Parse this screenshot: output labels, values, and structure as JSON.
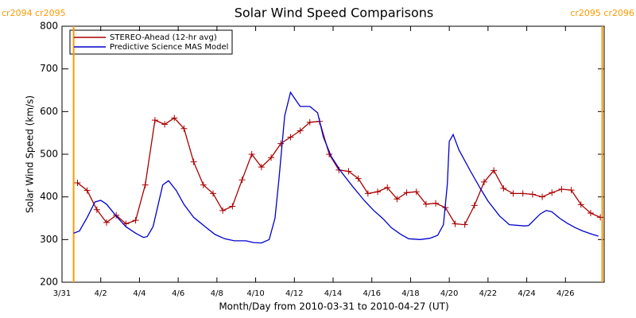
{
  "chart_data": {
    "type": "line",
    "title": "Solar Wind Speed Comparisons",
    "x_label": "Month/Day from 2010-03-31 to 2010-04-27 (UT)",
    "y_label": "Solar Wind Speed (km/s)",
    "xlim": [
      0,
      28
    ],
    "ylim": [
      200,
      800
    ],
    "yticks": [
      200,
      300,
      400,
      500,
      600,
      700,
      800
    ],
    "xticks": [
      {
        "value": 0,
        "label": "3/31"
      },
      {
        "value": 2,
        "label": "4/2"
      },
      {
        "value": 4,
        "label": "4/4"
      },
      {
        "value": 6,
        "label": "4/6"
      },
      {
        "value": 8,
        "label": "4/8"
      },
      {
        "value": 10,
        "label": "4/10"
      },
      {
        "value": 12,
        "label": "4/12"
      },
      {
        "value": 14,
        "label": "4/14"
      },
      {
        "value": 16,
        "label": "4/16"
      },
      {
        "value": 18,
        "label": "4/18"
      },
      {
        "value": 20,
        "label": "4/20"
      },
      {
        "value": 22,
        "label": "4/22"
      },
      {
        "value": 24,
        "label": "4/24"
      },
      {
        "value": 26,
        "label": "4/26"
      }
    ],
    "legend": "top-left",
    "boundaries": [
      {
        "x": 0.6,
        "label": "cr2094 cr2095",
        "color": "#ff9900"
      },
      {
        "x": 27.9,
        "label": "cr2095 cr2096",
        "color": "#ff9900"
      }
    ],
    "series": [
      {
        "name": "STEREO-Ahead (12-hr avg)",
        "color": "#aa0000",
        "marker": "+",
        "x": [
          0.8,
          1.3,
          1.8,
          2.3,
          2.8,
          3.3,
          3.8,
          4.3,
          4.8,
          5.3,
          5.8,
          6.3,
          6.8,
          7.3,
          7.8,
          8.3,
          8.8,
          9.3,
          9.8,
          10.3,
          10.8,
          11.3,
          11.8,
          12.3,
          12.8,
          13.3,
          13.8,
          14.3,
          14.8,
          15.3,
          15.8,
          16.3,
          16.8,
          17.3,
          17.8,
          18.3,
          18.8,
          19.3,
          19.8,
          20.3,
          20.8,
          21.3,
          21.8,
          22.3,
          22.8,
          23.3,
          23.8,
          24.3,
          24.8,
          25.3,
          25.8,
          26.3,
          26.8,
          27.3,
          27.8
        ],
        "values": [
          433,
          415,
          370,
          340,
          357,
          337,
          345,
          428,
          580,
          570,
          585,
          560,
          482,
          428,
          408,
          368,
          378,
          440,
          500,
          470,
          492,
          525,
          540,
          555,
          575,
          577,
          500,
          463,
          460,
          443,
          408,
          412,
          422,
          395,
          410,
          412,
          383,
          385,
          375,
          337,
          335,
          380,
          435,
          462,
          420,
          408,
          408,
          406,
          400,
          410,
          418,
          416,
          382,
          362,
          352
        ]
      },
      {
        "name": "Predictive Science MAS Model",
        "color": "#0000cc",
        "x": [
          0.6,
          0.9,
          1.3,
          1.7,
          2.0,
          2.3,
          2.8,
          3.3,
          3.8,
          4.2,
          4.4,
          4.7,
          5.2,
          5.5,
          5.9,
          6.3,
          6.8,
          7.4,
          7.9,
          8.4,
          8.9,
          9.5,
          9.9,
          10.3,
          10.7,
          11.0,
          11.2,
          11.5,
          11.8,
          12.3,
          12.8,
          13.2,
          13.5,
          13.9,
          14.4,
          15.0,
          15.6,
          16.1,
          16.6,
          17.0,
          17.5,
          17.9,
          18.5,
          19.0,
          19.4,
          19.7,
          19.9,
          20.0,
          20.2,
          20.5,
          21.1,
          21.6,
          22.0,
          22.6,
          23.1,
          23.9,
          24.1,
          24.7,
          25.0,
          25.3,
          25.7,
          26.1,
          26.5,
          26.9,
          27.4,
          27.7
        ],
        "values": [
          315,
          320,
          352,
          388,
          392,
          383,
          355,
          330,
          315,
          305,
          307,
          330,
          428,
          438,
          415,
          382,
          352,
          330,
          312,
          302,
          297,
          297,
          293,
          292,
          300,
          350,
          440,
          590,
          645,
          612,
          612,
          597,
          540,
          495,
          460,
          425,
          392,
          368,
          348,
          328,
          312,
          302,
          300,
          303,
          310,
          335,
          430,
          530,
          546,
          510,
          460,
          420,
          390,
          355,
          335,
          332,
          333,
          360,
          368,
          365,
          350,
          338,
          328,
          320,
          312,
          308
        ]
      }
    ]
  }
}
